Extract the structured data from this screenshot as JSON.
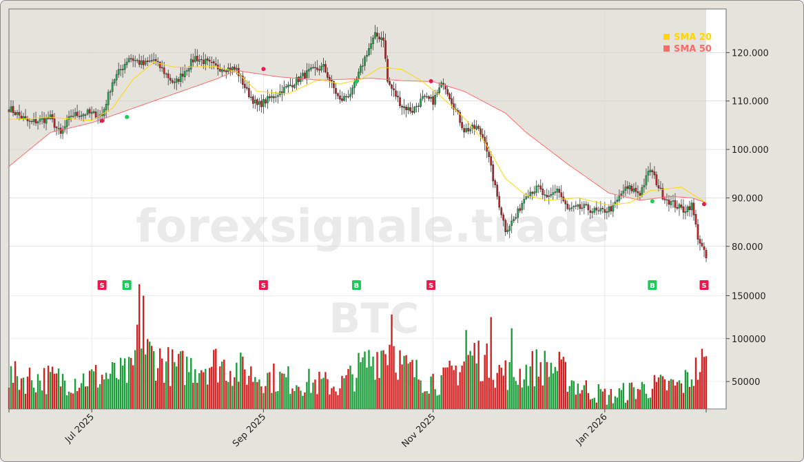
{
  "chart_data": {
    "type": "candlestick",
    "symbol_watermark": "BTC",
    "brand_watermark": "forexsignale.trade",
    "x_labels": [
      "Jul 2025",
      "Sep 2025",
      "Nov 2025",
      "Jan 2026"
    ],
    "price_ticks": [
      "120.000",
      "110.000",
      "100.000",
      "90.000",
      "80.000"
    ],
    "volume_ticks": [
      "150000",
      "100000",
      "50000"
    ],
    "price_ylim": [
      73000,
      129000
    ],
    "volume_ylim": [
      18000,
      168000
    ],
    "legend": [
      {
        "name": "SMA 20",
        "color": "#ffd700"
      },
      {
        "name": "SMA 50",
        "color": "#ff6b6b"
      }
    ],
    "colors": {
      "up": "#1a9e3a",
      "down": "#d42020",
      "sma20": "#ffd700",
      "sma50": "#ff6b6b",
      "buy": "#1ecb5a",
      "sell": "#e8194d"
    },
    "price_anchors": [
      [
        0,
        108500
      ],
      [
        10,
        105500
      ],
      [
        20,
        106500
      ],
      [
        25,
        103000
      ],
      [
        30,
        107000
      ],
      [
        38,
        107500
      ],
      [
        45,
        107000
      ],
      [
        50,
        114000
      ],
      [
        58,
        119000
      ],
      [
        65,
        117500
      ],
      [
        70,
        118500
      ],
      [
        80,
        113500
      ],
      [
        90,
        119000
      ],
      [
        100,
        117000
      ],
      [
        110,
        116500
      ],
      [
        115,
        112000
      ],
      [
        120,
        109000
      ],
      [
        128,
        111000
      ],
      [
        135,
        113000
      ],
      [
        145,
        116000
      ],
      [
        152,
        117000
      ],
      [
        160,
        110000
      ],
      [
        166,
        112000
      ],
      [
        173,
        120000
      ],
      [
        177,
        123500
      ],
      [
        181,
        123000
      ],
      [
        183,
        114000
      ],
      [
        190,
        109000
      ],
      [
        195,
        108000
      ],
      [
        200,
        110500
      ],
      [
        205,
        110000
      ],
      [
        210,
        114000
      ],
      [
        220,
        104000
      ],
      [
        226,
        104500
      ],
      [
        230,
        102000
      ],
      [
        235,
        92000
      ],
      [
        240,
        83500
      ],
      [
        245,
        86000
      ],
      [
        250,
        91000
      ],
      [
        256,
        92000
      ],
      [
        260,
        89500
      ],
      [
        265,
        92000
      ],
      [
        270,
        87500
      ],
      [
        278,
        88000
      ],
      [
        285,
        87000
      ],
      [
        292,
        88000
      ],
      [
        297,
        91500
      ],
      [
        300,
        92000
      ],
      [
        305,
        91000
      ],
      [
        310,
        96000
      ],
      [
        316,
        90500
      ],
      [
        320,
        89000
      ],
      [
        326,
        87500
      ],
      [
        330,
        88500
      ],
      [
        333,
        82000
      ],
      [
        337,
        77500
      ]
    ],
    "sma20": [
      [
        0,
        106200
      ],
      [
        20,
        106600
      ],
      [
        40,
        106000
      ],
      [
        50,
        108500
      ],
      [
        60,
        114500
      ],
      [
        70,
        118000
      ],
      [
        80,
        117000
      ],
      [
        100,
        117100
      ],
      [
        110,
        116000
      ],
      [
        120,
        112000
      ],
      [
        135,
        111500
      ],
      [
        150,
        114500
      ],
      [
        160,
        113500
      ],
      [
        170,
        114500
      ],
      [
        180,
        117000
      ],
      [
        190,
        116500
      ],
      [
        200,
        114000
      ],
      [
        210,
        110500
      ],
      [
        220,
        106500
      ],
      [
        230,
        101500
      ],
      [
        240,
        94000
      ],
      [
        250,
        90500
      ],
      [
        260,
        89500
      ],
      [
        275,
        90000
      ],
      [
        290,
        88500
      ],
      [
        300,
        89000
      ],
      [
        310,
        91500
      ],
      [
        325,
        92200
      ],
      [
        335,
        89500
      ],
      [
        337,
        89000
      ]
    ],
    "sma50": [
      [
        0,
        96500
      ],
      [
        20,
        103500
      ],
      [
        40,
        105500
      ],
      [
        60,
        108500
      ],
      [
        80,
        111500
      ],
      [
        100,
        114500
      ],
      [
        110,
        116300
      ],
      [
        130,
        115000
      ],
      [
        150,
        114300
      ],
      [
        175,
        114700
      ],
      [
        190,
        114200
      ],
      [
        205,
        114000
      ],
      [
        220,
        112000
      ],
      [
        240,
        107500
      ],
      [
        250,
        103500
      ],
      [
        270,
        97000
      ],
      [
        290,
        91000
      ],
      [
        305,
        89500
      ],
      [
        320,
        90300
      ],
      [
        330,
        90000
      ],
      [
        337,
        89000
      ]
    ],
    "volume_anchors": [
      [
        0,
        55000
      ],
      [
        30,
        52000
      ],
      [
        60,
        60000
      ],
      [
        63,
        128000
      ],
      [
        66,
        85000
      ],
      [
        80,
        65000
      ],
      [
        100,
        72000
      ],
      [
        120,
        57000
      ],
      [
        140,
        50000
      ],
      [
        160,
        45000
      ],
      [
        180,
        85000
      ],
      [
        185,
        95000
      ],
      [
        190,
        67000
      ],
      [
        200,
        55000
      ],
      [
        210,
        50000
      ],
      [
        220,
        72000
      ],
      [
        225,
        82000
      ],
      [
        235,
        63000
      ],
      [
        245,
        57000
      ],
      [
        255,
        68000
      ],
      [
        265,
        66000
      ],
      [
        275,
        45000
      ],
      [
        290,
        32000
      ],
      [
        305,
        42000
      ],
      [
        315,
        45000
      ],
      [
        325,
        45000
      ],
      [
        335,
        70000
      ],
      [
        337,
        68000
      ]
    ],
    "volume_spikes": [
      [
        65,
        150000
      ],
      [
        185,
        128000
      ],
      [
        233,
        125000
      ],
      [
        243,
        112000
      ],
      [
        221,
        110000
      ]
    ],
    "signals": [
      {
        "type": "S",
        "x_index": 45,
        "price": 105900
      },
      {
        "type": "B",
        "x_index": 57,
        "price": 106700
      },
      {
        "type": "S",
        "x_index": 123,
        "price": 116600
      },
      {
        "type": "B",
        "x_index": 168,
        "price": 114000
      },
      {
        "type": "S",
        "x_index": 204,
        "price": 114100
      },
      {
        "type": "B",
        "x_index": 311,
        "price": 89300
      },
      {
        "type": "S",
        "x_index": 336,
        "price": 88700
      }
    ],
    "n_candles": 338,
    "grid": true,
    "legend_position": "top-right"
  }
}
